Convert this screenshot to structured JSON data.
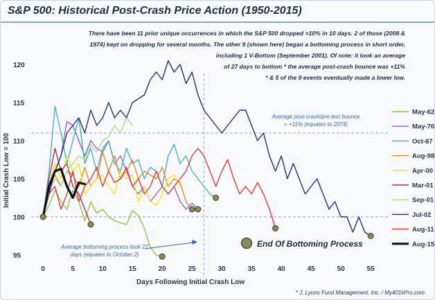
{
  "title": "S&P 500: Historical Post-Crash Price Action (1950-2015)",
  "annotation_lines": [
    "There have been 11 prior unique occurrences in which the S&P 500 dropped >10% in 10 days. 2 of those (2008 &",
    "1974) kept on dropping for several months. The other 9 (shown here) began a bottoming process in short order,",
    "including 1 V-Bottom (September 2001). Of note: it took an average",
    "of 27 days to bottom  * the average post-crash bounce was +11%",
    "* & 5 of the 9 events eventually made a lower low."
  ],
  "bounce_note": [
    "Average post-crash/pre-test bounce",
    "= +11% (equates to 2074)"
  ],
  "bottom_note": [
    "Average bottoming process took 27",
    "days (equates to October 2)"
  ],
  "bottom_marker_label": "End Of Bottoming Process",
  "credit": "* J. Lyons Fund Management, Inc. / My401kPro.com",
  "colors": {
    "background": "#f7f9fb",
    "reference_line": "#8fa8cc",
    "marker_fill": "#8a8a5a"
  },
  "chart_data": {
    "type": "line",
    "title": "S&P 500: Historical Post-Crash Price Action (1950-2015)",
    "xlabel": "Days Following Initial Crash Low",
    "ylabel": "Initial Crash Low = 100",
    "xlim": [
      -2,
      58
    ],
    "ylim": [
      92,
      122
    ],
    "x_ticks": [
      0,
      5,
      10,
      15,
      20,
      25,
      30,
      35,
      40,
      45,
      50,
      55
    ],
    "y_ticks": [
      95,
      100,
      105,
      110,
      115,
      120
    ],
    "reference_lines": {
      "horizontal": [
        100,
        111
      ],
      "vertical": [
        27
      ]
    },
    "legend_position": "right",
    "series": [
      {
        "name": "May-62",
        "color": "#8fc34a",
        "width": 1.4,
        "values": [
          [
            0,
            100
          ],
          [
            1,
            101.5
          ],
          [
            2,
            103.5
          ],
          [
            3,
            102
          ],
          [
            4,
            101
          ],
          [
            5,
            103.5
          ],
          [
            6,
            102
          ],
          [
            7,
            99.5
          ],
          [
            8,
            102
          ],
          [
            9,
            100.5
          ],
          [
            10,
            101
          ],
          [
            11,
            100
          ],
          [
            12,
            99.5
          ],
          [
            13,
            99.2
          ],
          [
            14,
            99
          ],
          [
            15,
            100.8
          ],
          [
            16,
            100.2
          ],
          [
            17,
            98.5
          ],
          [
            18,
            96
          ],
          [
            19,
            95
          ],
          [
            20,
            94.8
          ]
        ],
        "end_marker": true
      },
      {
        "name": "May-70",
        "color": "#8a63c7",
        "width": 1.4,
        "values": [
          [
            0,
            100
          ],
          [
            1,
            104
          ],
          [
            2,
            106
          ],
          [
            3,
            108
          ],
          [
            4,
            112.5
          ],
          [
            5,
            112
          ],
          [
            6,
            110
          ],
          [
            7,
            108
          ],
          [
            8,
            110
          ],
          [
            9,
            109
          ],
          [
            10,
            108.5
          ],
          [
            11,
            110
          ],
          [
            12,
            107
          ],
          [
            13,
            108
          ],
          [
            14,
            106
          ],
          [
            15,
            104
          ],
          [
            16,
            103
          ],
          [
            17,
            104
          ],
          [
            18,
            102
          ],
          [
            19,
            103
          ],
          [
            20,
            104
          ],
          [
            21,
            103
          ],
          [
            22,
            104
          ],
          [
            23,
            102
          ],
          [
            24,
            101
          ],
          [
            25,
            101.8
          ],
          [
            26,
            101
          ]
        ],
        "end_marker": true
      },
      {
        "name": "Oct-87",
        "color": "#4aaec9",
        "width": 1.4,
        "values": [
          [
            0,
            100
          ],
          [
            1,
            106
          ],
          [
            2,
            114.5
          ],
          [
            3,
            111
          ],
          [
            4,
            107
          ],
          [
            5,
            110
          ],
          [
            6,
            113
          ],
          [
            7,
            107
          ],
          [
            8,
            109
          ],
          [
            9,
            106
          ],
          [
            10,
            109
          ],
          [
            11,
            110
          ],
          [
            12,
            107
          ],
          [
            13,
            106
          ],
          [
            14,
            109
          ],
          [
            15,
            107
          ],
          [
            16,
            107.5
          ],
          [
            17,
            105
          ],
          [
            18,
            106.5
          ],
          [
            19,
            106
          ],
          [
            20,
            104
          ],
          [
            21,
            108
          ],
          [
            22,
            109.5
          ],
          [
            23,
            107
          ],
          [
            24,
            108
          ],
          [
            25,
            106
          ],
          [
            26,
            105
          ],
          [
            27,
            104
          ],
          [
            28,
            103
          ],
          [
            29,
            102.5
          ]
        ],
        "end_marker": true
      },
      {
        "name": "Aug-98",
        "color": "#e58a2e",
        "width": 1.4,
        "values": [
          [
            0,
            100
          ],
          [
            1,
            104
          ],
          [
            2,
            105.5
          ],
          [
            3,
            104
          ],
          [
            4,
            106
          ],
          [
            5,
            105.5
          ],
          [
            6,
            104
          ],
          [
            7,
            106.5
          ],
          [
            8,
            104
          ],
          [
            9,
            105
          ],
          [
            10,
            108.5
          ],
          [
            11,
            106
          ],
          [
            12,
            108
          ],
          [
            13,
            105
          ],
          [
            14,
            106
          ],
          [
            15,
            107.5
          ],
          [
            16,
            105
          ],
          [
            17,
            106
          ],
          [
            18,
            105.5
          ],
          [
            19,
            105
          ],
          [
            20,
            106.5
          ],
          [
            21,
            104
          ],
          [
            22,
            105
          ],
          [
            23,
            104.5
          ],
          [
            24,
            102
          ],
          [
            25,
            101
          ]
        ],
        "end_marker": true
      },
      {
        "name": "Apr-00",
        "color": "#f2e61f",
        "width": 1.4,
        "values": [
          [
            0,
            100
          ],
          [
            1,
            104
          ],
          [
            2,
            107
          ],
          [
            3,
            105
          ],
          [
            4,
            108
          ],
          [
            5,
            106
          ],
          [
            6,
            107
          ],
          [
            7,
            103
          ],
          [
            8,
            104
          ],
          [
            9,
            105
          ],
          [
            10,
            105.5
          ],
          [
            11,
            104
          ],
          [
            12,
            103
          ],
          [
            13,
            106
          ],
          [
            14,
            105
          ],
          [
            15,
            105.5
          ],
          [
            16,
            102
          ],
          [
            17,
            104
          ],
          [
            18,
            102
          ],
          [
            19,
            101.5
          ],
          [
            20,
            103
          ],
          [
            21,
            105
          ],
          [
            22,
            105.5
          ],
          [
            23,
            104
          ]
        ],
        "end_marker": false
      },
      {
        "name": "Mar-01",
        "color": "#a8324a",
        "width": 1.4,
        "values": [
          [
            0,
            100
          ],
          [
            1,
            105
          ],
          [
            2,
            109
          ],
          [
            3,
            106
          ],
          [
            4,
            107
          ],
          [
            5,
            104
          ],
          [
            6,
            103
          ],
          [
            7,
            101
          ],
          [
            8,
            99
          ]
        ],
        "end_marker": true
      },
      {
        "name": "Sep-01",
        "color": "#b7d98a",
        "width": 1.4,
        "values": [
          [
            0,
            100
          ],
          [
            1,
            103.5
          ],
          [
            2,
            105
          ],
          [
            3,
            104
          ],
          [
            4,
            106
          ],
          [
            5,
            107
          ],
          [
            6,
            108
          ],
          [
            7,
            107.5
          ],
          [
            8,
            109.5
          ],
          [
            9,
            108.5
          ],
          [
            10,
            110
          ],
          [
            11,
            110.5
          ],
          [
            12,
            112
          ],
          [
            13,
            111
          ],
          [
            14,
            113
          ],
          [
            15,
            112
          ]
        ],
        "end_marker": false
      },
      {
        "name": "Jul-02",
        "color": "#1f2e78",
        "width": 1.4,
        "values": [
          [
            0,
            100
          ],
          [
            1,
            103
          ],
          [
            2,
            106
          ],
          [
            3,
            108
          ],
          [
            4,
            111
          ],
          [
            5,
            112
          ],
          [
            6,
            113
          ],
          [
            7,
            111
          ],
          [
            8,
            114
          ],
          [
            9,
            112
          ],
          [
            10,
            113
          ],
          [
            11,
            115
          ],
          [
            12,
            113
          ],
          [
            13,
            114
          ],
          [
            14,
            113
          ],
          [
            15,
            115
          ],
          [
            16,
            115.5
          ],
          [
            17,
            116
          ],
          [
            18,
            118
          ],
          [
            19,
            119
          ],
          [
            20,
            118
          ],
          [
            21,
            120.5
          ],
          [
            22,
            119
          ],
          [
            23,
            120
          ],
          [
            24,
            117.5
          ],
          [
            25,
            119
          ],
          [
            26,
            116
          ],
          [
            27,
            114
          ],
          [
            28,
            113
          ],
          [
            29,
            112
          ],
          [
            30,
            111
          ],
          [
            31,
            112
          ],
          [
            32,
            113
          ],
          [
            33,
            114
          ],
          [
            34,
            114
          ],
          [
            35,
            112
          ],
          [
            36,
            110
          ],
          [
            37,
            111
          ],
          [
            38,
            108
          ],
          [
            39,
            106
          ],
          [
            40,
            108
          ],
          [
            41,
            105
          ],
          [
            42,
            107
          ],
          [
            43,
            105
          ],
          [
            44,
            103
          ],
          [
            45,
            104
          ],
          [
            46,
            105
          ],
          [
            47,
            103
          ],
          [
            48,
            101
          ],
          [
            49,
            102
          ],
          [
            50,
            100
          ],
          [
            51,
            100
          ],
          [
            52,
            98
          ],
          [
            53,
            100
          ],
          [
            54,
            98
          ],
          [
            55,
            97.5
          ]
        ],
        "end_marker": true
      },
      {
        "name": "Aug-11",
        "color": "#e03a3e",
        "width": 1.4,
        "values": [
          [
            0,
            100
          ],
          [
            1,
            103
          ],
          [
            2,
            104
          ],
          [
            3,
            101
          ],
          [
            4,
            103
          ],
          [
            5,
            106
          ],
          [
            6,
            102
          ],
          [
            7,
            104
          ],
          [
            8,
            105
          ],
          [
            9,
            106.5
          ],
          [
            10,
            104
          ],
          [
            11,
            106
          ],
          [
            12,
            104.5
          ],
          [
            13,
            105
          ],
          [
            14,
            106.5
          ],
          [
            15,
            104
          ],
          [
            16,
            105
          ],
          [
            17,
            103
          ],
          [
            18,
            104
          ],
          [
            19,
            106
          ],
          [
            20,
            104
          ],
          [
            21,
            103
          ],
          [
            22,
            104
          ],
          [
            23,
            105
          ],
          [
            24,
            106
          ],
          [
            25,
            108
          ],
          [
            26,
            109
          ],
          [
            27,
            108
          ],
          [
            28,
            106
          ],
          [
            29,
            104
          ],
          [
            30,
            106
          ],
          [
            31,
            107.5
          ],
          [
            32,
            105
          ],
          [
            33,
            103
          ],
          [
            34,
            104
          ],
          [
            35,
            103
          ],
          [
            36,
            104.5
          ],
          [
            37,
            103
          ],
          [
            38,
            101
          ],
          [
            39,
            98.5
          ]
        ],
        "end_marker": true
      },
      {
        "name": "Aug-15",
        "color": "#111111",
        "width": 3.2,
        "values": [
          [
            0,
            100
          ],
          [
            1,
            104
          ],
          [
            2,
            106
          ],
          [
            3,
            106.3
          ],
          [
            4,
            104
          ],
          [
            5,
            102.5
          ],
          [
            6,
            104.5
          ],
          [
            7,
            104.3
          ]
        ],
        "end_marker": false
      }
    ]
  }
}
